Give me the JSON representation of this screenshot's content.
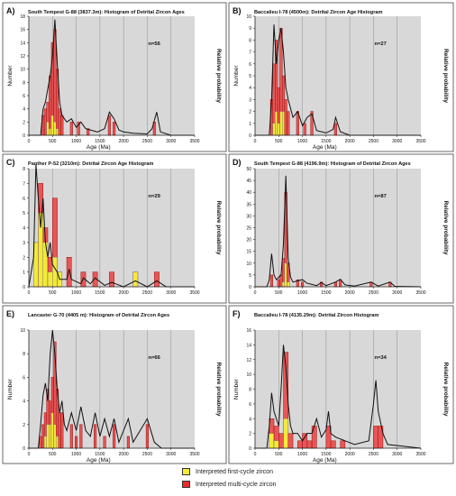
{
  "figure": {
    "legend": [
      {
        "label": "Interpreted first-cycle zircon",
        "color": "#f3ea3a"
      },
      {
        "label": "Interpreted multi-cycle zircon",
        "color": "#ee2b2b"
      }
    ]
  },
  "chart_data": [
    {
      "panel": "A)",
      "type": "bar",
      "title": "South Tempest G-88 (3837.3m): Histogram of Detrital Zircon Ages",
      "xlabel": "Age (Ma)",
      "ylabel": "Number",
      "y2label": "Relative probability",
      "n_label": "n=56",
      "xlim": [
        0,
        3500
      ],
      "ylim": [
        0,
        18
      ],
      "xticks": [
        0,
        500,
        1000,
        1500,
        2000,
        2500,
        3000,
        3500
      ],
      "yticks": [
        0,
        2,
        4,
        6,
        8,
        10,
        12,
        14,
        16,
        18
      ],
      "bin_width": 50,
      "bars": [
        {
          "x": 300,
          "red": 3,
          "yellow": 0
        },
        {
          "x": 350,
          "red": 4,
          "yellow": 0
        },
        {
          "x": 400,
          "red": 5,
          "yellow": 2
        },
        {
          "x": 450,
          "red": 9,
          "yellow": 1
        },
        {
          "x": 500,
          "red": 14,
          "yellow": 3
        },
        {
          "x": 550,
          "red": 16,
          "yellow": 2
        },
        {
          "x": 600,
          "red": 10,
          "yellow": 1
        },
        {
          "x": 650,
          "red": 4,
          "yellow": 0
        },
        {
          "x": 700,
          "red": 3,
          "yellow": 0
        },
        {
          "x": 900,
          "red": 2,
          "yellow": 0
        },
        {
          "x": 1050,
          "red": 2,
          "yellow": 0
        },
        {
          "x": 1250,
          "red": 1,
          "yellow": 0
        },
        {
          "x": 1700,
          "red": 3,
          "yellow": 0
        },
        {
          "x": 1800,
          "red": 2,
          "yellow": 0
        },
        {
          "x": 2650,
          "red": 2,
          "yellow": 0
        }
      ],
      "probability": [
        [
          0,
          0
        ],
        [
          250,
          0
        ],
        [
          300,
          4
        ],
        [
          350,
          5
        ],
        [
          400,
          7
        ],
        [
          450,
          9
        ],
        [
          500,
          12
        ],
        [
          550,
          17.5
        ],
        [
          600,
          11
        ],
        [
          650,
          5
        ],
        [
          700,
          3
        ],
        [
          800,
          2
        ],
        [
          900,
          2.5
        ],
        [
          1000,
          1.2
        ],
        [
          1100,
          2
        ],
        [
          1200,
          1
        ],
        [
          1300,
          0.8
        ],
        [
          1450,
          0.5
        ],
        [
          1600,
          1
        ],
        [
          1700,
          3.5
        ],
        [
          1800,
          2.5
        ],
        [
          1900,
          0.8
        ],
        [
          2000,
          0.5
        ],
        [
          2200,
          0.3
        ],
        [
          2500,
          0.2
        ],
        [
          2600,
          1
        ],
        [
          2700,
          3.5
        ],
        [
          2780,
          0.5
        ],
        [
          3000,
          0
        ],
        [
          3500,
          0
        ]
      ]
    },
    {
      "panel": "B)",
      "type": "bar",
      "title": "Baccalieu I-78 (4500m): Detrital Zircon Age Histogram",
      "xlabel": "Age (Ma)",
      "ylabel": "Number",
      "y2label": "Relative probability",
      "n_label": "n=27",
      "xlim": [
        0,
        3500
      ],
      "ylim": [
        0,
        10
      ],
      "xticks": [
        0,
        500,
        1000,
        1500,
        2000,
        2500,
        3000,
        3500
      ],
      "yticks": [
        0,
        1,
        2,
        3,
        4,
        5,
        6,
        7,
        8,
        9,
        10
      ],
      "bin_width": 50,
      "bars": [
        {
          "x": 350,
          "red": 3,
          "yellow": 0
        },
        {
          "x": 400,
          "red": 6,
          "yellow": 1
        },
        {
          "x": 450,
          "red": 8,
          "yellow": 2
        },
        {
          "x": 500,
          "red": 4,
          "yellow": 1
        },
        {
          "x": 550,
          "red": 9,
          "yellow": 2
        },
        {
          "x": 600,
          "red": 5,
          "yellow": 2
        },
        {
          "x": 650,
          "red": 3,
          "yellow": 0
        },
        {
          "x": 700,
          "red": 2,
          "yellow": 0
        },
        {
          "x": 900,
          "red": 2,
          "yellow": 0
        },
        {
          "x": 1050,
          "red": 1,
          "yellow": 0
        },
        {
          "x": 1200,
          "red": 2,
          "yellow": 0
        },
        {
          "x": 1700,
          "red": 1,
          "yellow": 0
        }
      ],
      "probability": [
        [
          0,
          0
        ],
        [
          300,
          0
        ],
        [
          350,
          3
        ],
        [
          400,
          9.3
        ],
        [
          450,
          6
        ],
        [
          500,
          8
        ],
        [
          550,
          9
        ],
        [
          600,
          7
        ],
        [
          650,
          4
        ],
        [
          700,
          3
        ],
        [
          800,
          1.5
        ],
        [
          900,
          2
        ],
        [
          1000,
          0.8
        ],
        [
          1100,
          1.5
        ],
        [
          1200,
          1.8
        ],
        [
          1300,
          0.4
        ],
        [
          1500,
          0.2
        ],
        [
          1650,
          0.5
        ],
        [
          1700,
          1.5
        ],
        [
          1800,
          0.3
        ],
        [
          2000,
          0
        ],
        [
          3500,
          0
        ]
      ]
    },
    {
      "panel": "C)",
      "type": "bar",
      "title": "Panther P-52 (3210m): Detrital Zircon Age Histogram",
      "xlabel": "",
      "ylabel": "",
      "y2label": "Relative probability",
      "n_label": "n=29",
      "xlim": [
        0,
        3500
      ],
      "ylim": [
        0,
        8
      ],
      "xticks": [
        0,
        500,
        1000,
        1500,
        2000,
        2500,
        3000,
        3500
      ],
      "yticks": [
        0,
        1,
        2,
        3,
        4,
        5,
        6,
        7,
        8
      ],
      "bin_width": 100,
      "bars": [
        {
          "x": 150,
          "red": 3,
          "yellow": 3
        },
        {
          "x": 250,
          "red": 7,
          "yellow": 5
        },
        {
          "x": 350,
          "red": 4,
          "yellow": 3
        },
        {
          "x": 450,
          "red": 2,
          "yellow": 1
        },
        {
          "x": 550,
          "red": 6,
          "yellow": 2
        },
        {
          "x": 650,
          "red": 1,
          "yellow": 1
        },
        {
          "x": 850,
          "red": 2,
          "yellow": 0
        },
        {
          "x": 1150,
          "red": 1,
          "yellow": 0
        },
        {
          "x": 1400,
          "red": 1,
          "yellow": 0
        },
        {
          "x": 1750,
          "red": 1,
          "yellow": 0
        },
        {
          "x": 2250,
          "red": 1,
          "yellow": 1
        },
        {
          "x": 2700,
          "red": 1,
          "yellow": 0
        }
      ],
      "probability": [
        [
          0,
          0
        ],
        [
          100,
          2
        ],
        [
          150,
          8.3
        ],
        [
          200,
          6
        ],
        [
          250,
          4
        ],
        [
          300,
          6
        ],
        [
          350,
          3
        ],
        [
          400,
          2
        ],
        [
          450,
          3
        ],
        [
          500,
          1.5
        ],
        [
          600,
          1
        ],
        [
          650,
          0.5
        ],
        [
          800,
          0.5
        ],
        [
          850,
          1.2
        ],
        [
          900,
          0.5
        ],
        [
          1100,
          0.2
        ],
        [
          1150,
          0.6
        ],
        [
          1300,
          0.2
        ],
        [
          1400,
          0.6
        ],
        [
          1600,
          0.1
        ],
        [
          1750,
          0.3
        ],
        [
          2000,
          0
        ],
        [
          2250,
          0.4
        ],
        [
          2500,
          0
        ],
        [
          2700,
          0.4
        ],
        [
          2900,
          0
        ],
        [
          3500,
          0
        ]
      ]
    },
    {
      "panel": "D)",
      "type": "bar",
      "title": "South Tempest G-88 (4196.9m): Histogram of Detrital Zircon Ages",
      "xlabel": "",
      "ylabel": "",
      "y2label": "Relative probability",
      "n_label": "n=87",
      "xlim": [
        0,
        3500
      ],
      "ylim": [
        0,
        50
      ],
      "xticks": [
        0,
        500,
        1000,
        1500,
        2000,
        2500,
        3000,
        3500
      ],
      "yticks": [
        0,
        5,
        10,
        15,
        20,
        25,
        30,
        35,
        40,
        45,
        50
      ],
      "bin_width": 50,
      "bars": [
        {
          "x": 350,
          "red": 5,
          "yellow": 0
        },
        {
          "x": 500,
          "red": 3,
          "yellow": 0
        },
        {
          "x": 550,
          "red": 5,
          "yellow": 0
        },
        {
          "x": 600,
          "red": 12,
          "yellow": 2
        },
        {
          "x": 650,
          "red": 40,
          "yellow": 10
        },
        {
          "x": 700,
          "red": 10,
          "yellow": 2
        },
        {
          "x": 900,
          "red": 3,
          "yellow": 0
        },
        {
          "x": 1000,
          "red": 2,
          "yellow": 0
        },
        {
          "x": 1400,
          "red": 2,
          "yellow": 0
        },
        {
          "x": 1700,
          "red": 2,
          "yellow": 0
        },
        {
          "x": 1800,
          "red": 3,
          "yellow": 0
        },
        {
          "x": 2450,
          "red": 2,
          "yellow": 0
        },
        {
          "x": 2850,
          "red": 2,
          "yellow": 0
        }
      ],
      "probability": [
        [
          0,
          0
        ],
        [
          250,
          0
        ],
        [
          300,
          3
        ],
        [
          350,
          14
        ],
        [
          400,
          5
        ],
        [
          450,
          3
        ],
        [
          500,
          4
        ],
        [
          550,
          5
        ],
        [
          600,
          18
        ],
        [
          650,
          47
        ],
        [
          700,
          12
        ],
        [
          750,
          4
        ],
        [
          800,
          2
        ],
        [
          900,
          2.5
        ],
        [
          1000,
          3
        ],
        [
          1100,
          1.5
        ],
        [
          1200,
          1
        ],
        [
          1300,
          0.5
        ],
        [
          1400,
          1.8
        ],
        [
          1500,
          0.5
        ],
        [
          1700,
          2
        ],
        [
          1800,
          3.2
        ],
        [
          1900,
          0.8
        ],
        [
          2100,
          0.3
        ],
        [
          2450,
          2
        ],
        [
          2600,
          0.3
        ],
        [
          2850,
          2
        ],
        [
          2950,
          0.2
        ],
        [
          3500,
          0
        ]
      ]
    },
    {
      "panel": "E)",
      "type": "bar",
      "title": "Lancaster G-70 (4405 m): Histogram of Detrital Zircon Ages",
      "xlabel": "Age (Ma)",
      "ylabel": "Number",
      "y2label": "Relative probability",
      "n_label": "n=66",
      "xlim": [
        0,
        3500
      ],
      "ylim": [
        0,
        10
      ],
      "xticks": [
        0,
        500,
        1000,
        1500,
        2000,
        2500,
        3000,
        3500
      ],
      "yticks": [
        0,
        2,
        4,
        6,
        8,
        10
      ],
      "bin_width": 50,
      "bars": [
        {
          "x": 250,
          "red": 1,
          "yellow": 0
        },
        {
          "x": 300,
          "red": 2,
          "yellow": 0
        },
        {
          "x": 350,
          "red": 3,
          "yellow": 1
        },
        {
          "x": 400,
          "red": 5,
          "yellow": 2
        },
        {
          "x": 450,
          "red": 4,
          "yellow": 2
        },
        {
          "x": 500,
          "red": 6,
          "yellow": 3
        },
        {
          "x": 550,
          "red": 9,
          "yellow": 2
        },
        {
          "x": 600,
          "red": 5,
          "yellow": 1
        },
        {
          "x": 650,
          "red": 3,
          "yellow": 0
        },
        {
          "x": 700,
          "red": 3,
          "yellow": 0
        },
        {
          "x": 900,
          "red": 2,
          "yellow": 0
        },
        {
          "x": 1000,
          "red": 1,
          "yellow": 0
        },
        {
          "x": 1100,
          "red": 2,
          "yellow": 0
        },
        {
          "x": 1400,
          "red": 2,
          "yellow": 0
        },
        {
          "x": 1600,
          "red": 1,
          "yellow": 0
        },
        {
          "x": 1800,
          "red": 2,
          "yellow": 0
        },
        {
          "x": 2100,
          "red": 1,
          "yellow": 0
        },
        {
          "x": 2500,
          "red": 2,
          "yellow": 0
        }
      ],
      "probability": [
        [
          0,
          0
        ],
        [
          200,
          0
        ],
        [
          250,
          2
        ],
        [
          300,
          4.5
        ],
        [
          350,
          5.5
        ],
        [
          400,
          4
        ],
        [
          450,
          8
        ],
        [
          500,
          10
        ],
        [
          550,
          8
        ],
        [
          600,
          5
        ],
        [
          650,
          3
        ],
        [
          700,
          4
        ],
        [
          750,
          2
        ],
        [
          800,
          1.5
        ],
        [
          900,
          3
        ],
        [
          1000,
          1.5
        ],
        [
          1100,
          3.5
        ],
        [
          1200,
          1.5
        ],
        [
          1300,
          1
        ],
        [
          1400,
          3
        ],
        [
          1500,
          1
        ],
        [
          1600,
          2.5
        ],
        [
          1700,
          1
        ],
        [
          1800,
          2.5
        ],
        [
          1900,
          0.5
        ],
        [
          2100,
          2.5
        ],
        [
          2200,
          0.5
        ],
        [
          2500,
          2.5
        ],
        [
          2650,
          0.5
        ],
        [
          2800,
          0
        ],
        [
          3500,
          0
        ]
      ]
    },
    {
      "panel": "F)",
      "type": "bar",
      "title": "Baccalieu I-78 (4135.29m): Detrital Zircon  Histogram",
      "xlabel": "Age (Ma)",
      "ylabel": "Number",
      "y2label": "Relative probability",
      "n_label": "n=34",
      "xlim": [
        0,
        3500
      ],
      "ylim": [
        0,
        16
      ],
      "xticks": [
        0,
        500,
        1000,
        1500,
        2000,
        2500,
        3000,
        3500
      ],
      "yticks": [
        0,
        2,
        4,
        6,
        8,
        10,
        12,
        14,
        16
      ],
      "bin_width": 100,
      "bars": [
        {
          "x": 350,
          "red": 4,
          "yellow": 2
        },
        {
          "x": 450,
          "red": 3,
          "yellow": 1
        },
        {
          "x": 550,
          "red": 2,
          "yellow": 0
        },
        {
          "x": 650,
          "red": 13,
          "yellow": 4
        },
        {
          "x": 750,
          "red": 2,
          "yellow": 0
        },
        {
          "x": 950,
          "red": 1,
          "yellow": 0
        },
        {
          "x": 1050,
          "red": 2,
          "yellow": 0
        },
        {
          "x": 1150,
          "red": 1,
          "yellow": 0
        },
        {
          "x": 1250,
          "red": 3,
          "yellow": 0
        },
        {
          "x": 1550,
          "red": 3,
          "yellow": 0
        },
        {
          "x": 1650,
          "red": 1,
          "yellow": 0
        },
        {
          "x": 1850,
          "red": 1,
          "yellow": 0
        },
        {
          "x": 2550,
          "red": 3,
          "yellow": 0
        },
        {
          "x": 2650,
          "red": 3,
          "yellow": 0
        }
      ],
      "probability": [
        [
          0,
          0
        ],
        [
          250,
          0
        ],
        [
          300,
          3
        ],
        [
          350,
          7.5
        ],
        [
          400,
          5
        ],
        [
          450,
          4
        ],
        [
          500,
          3
        ],
        [
          550,
          8
        ],
        [
          600,
          14
        ],
        [
          650,
          11
        ],
        [
          700,
          6
        ],
        [
          750,
          3
        ],
        [
          800,
          2
        ],
        [
          900,
          2
        ],
        [
          1000,
          1
        ],
        [
          1100,
          2
        ],
        [
          1200,
          2
        ],
        [
          1300,
          4
        ],
        [
          1400,
          1.5
        ],
        [
          1500,
          2.5
        ],
        [
          1550,
          5
        ],
        [
          1600,
          2
        ],
        [
          1700,
          1.5
        ],
        [
          1900,
          1
        ],
        [
          2100,
          0.5
        ],
        [
          2400,
          1
        ],
        [
          2500,
          6
        ],
        [
          2550,
          9.2
        ],
        [
          2600,
          5
        ],
        [
          2700,
          2
        ],
        [
          2800,
          0.5
        ],
        [
          3500,
          0
        ]
      ]
    }
  ]
}
